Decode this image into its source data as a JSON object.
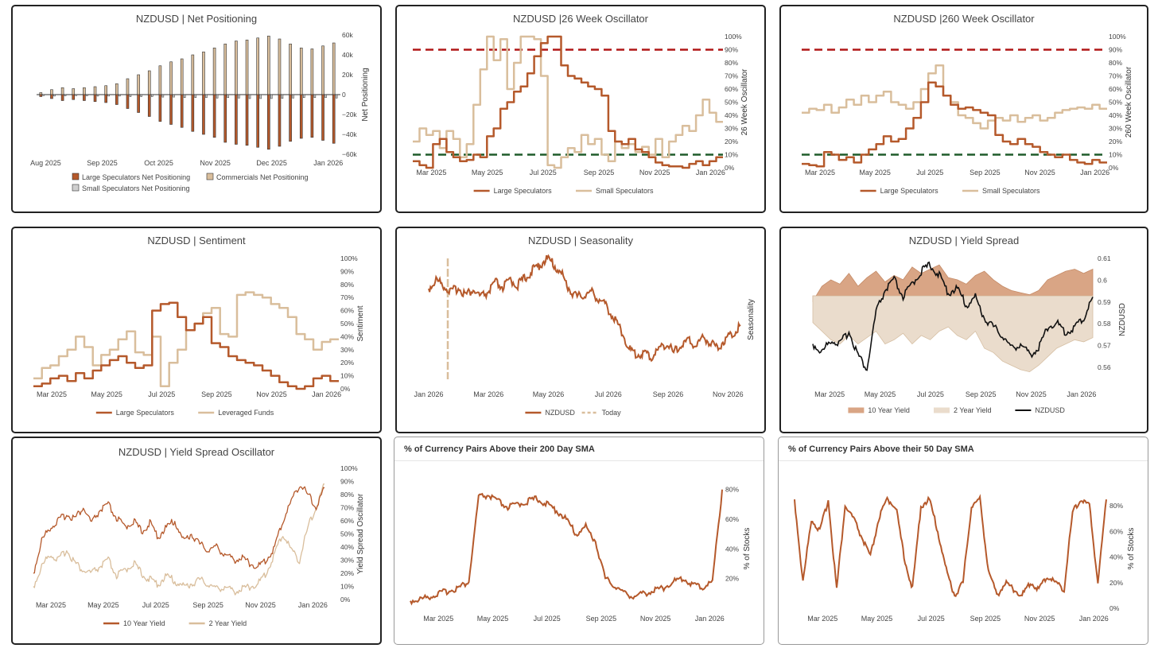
{
  "colors": {
    "large": "#b5592b",
    "small": "#d9be9c",
    "green": "#1f5c2a",
    "red": "#b01717",
    "black": "#111111",
    "bar_small": "#cfcfcf"
  },
  "chart_data": [
    {
      "id": "p1",
      "type": "bar",
      "title": "NZDUSD  |  Net Positioning",
      "ylabel": "Net Positioning",
      "ylim": [
        -60000,
        60000
      ],
      "y_ticks": [
        "60k",
        "40k",
        "20k",
        "0",
        "−20k",
        "−40k",
        "−60k"
      ],
      "x_ticks": [
        "Aug 2025",
        "Sep 2025",
        "Oct 2025",
        "Nov 2025",
        "Dec 2025",
        "Jan 2026"
      ],
      "legend": [
        "Large Speculators Net Positioning",
        "Commercials Net Positioning",
        "Small Speculators Net Positioning"
      ],
      "series": [
        {
          "name": "Large Speculators Net Positioning",
          "values": [
            -2000,
            -4000,
            -6000,
            -5000,
            -6000,
            -7000,
            -8000,
            -10000,
            -14000,
            -18000,
            -22000,
            -27000,
            -30000,
            -33000,
            -37000,
            -40000,
            -43000,
            -48000,
            -50000,
            -51000,
            -53000,
            -55000,
            -52000,
            -47000,
            -44000,
            -43000,
            -46000,
            -49000
          ]
        },
        {
          "name": "Commercials Net Positioning",
          "values": [
            2000,
            5000,
            7000,
            6000,
            7000,
            8000,
            9000,
            11000,
            16000,
            20000,
            24000,
            29000,
            33000,
            36000,
            40000,
            43000,
            47000,
            51000,
            54000,
            55000,
            57000,
            59000,
            56000,
            51000,
            47000,
            46000,
            49000,
            52000
          ]
        },
        {
          "name": "Small Speculators Net Positioning",
          "values": [
            -1000,
            -1500,
            -1200,
            -1000,
            -1200,
            -1500,
            -1500,
            -1500,
            -2000,
            -2000,
            -2000,
            -2500,
            -2500,
            -3000,
            -3000,
            -3000,
            -3500,
            -3000,
            -3500,
            -4000,
            -4000,
            -4000,
            -3800,
            -3500,
            -3000,
            -3000,
            -3000,
            -3500
          ]
        }
      ]
    },
    {
      "id": "p2",
      "type": "line",
      "title": "NZDUSD  |26 Week Oscillator",
      "ylabel": "26 Week Oscillator",
      "ylim": [
        0,
        100
      ],
      "y_ticks": [
        "100%",
        "90%",
        "80%",
        "70%",
        "60%",
        "50%",
        "40%",
        "30%",
        "20%",
        "10%",
        "0%"
      ],
      "x_ticks": [
        "Mar 2025",
        "May 2025",
        "Jul 2025",
        "Sep 2025",
        "Nov 2025",
        "Jan 2026"
      ],
      "hlines": [
        {
          "y": 90,
          "color": "red"
        },
        {
          "y": 10,
          "color": "green"
        }
      ],
      "legend": [
        "Large Speculators",
        "Small Speculators"
      ],
      "series": [
        {
          "name": "Large Speculators",
          "values": [
            5,
            2,
            0,
            18,
            22,
            12,
            8,
            5,
            6,
            10,
            8,
            24,
            30,
            45,
            50,
            58,
            62,
            72,
            85,
            95,
            100,
            100,
            78,
            70,
            68,
            65,
            62,
            60,
            55,
            28,
            20,
            18,
            22,
            14,
            12,
            8,
            4,
            2,
            1,
            1,
            0,
            3,
            5,
            2,
            5,
            8
          ]
        },
        {
          "name": "Small Speculators",
          "values": [
            20,
            30,
            25,
            28,
            15,
            28,
            22,
            8,
            18,
            48,
            75,
            100,
            82,
            98,
            60,
            80,
            100,
            100,
            98,
            70,
            2,
            0,
            8,
            15,
            12,
            25,
            18,
            22,
            10,
            5,
            20,
            15,
            18,
            12,
            16,
            10,
            22,
            8,
            20,
            25,
            32,
            28,
            40,
            52,
            42,
            35
          ]
        }
      ]
    },
    {
      "id": "p3",
      "type": "line",
      "title": "NZDUSD  |260 Week Oscillator",
      "ylabel": "260 Week Oscillator",
      "ylim": [
        0,
        100
      ],
      "y_ticks": [
        "100%",
        "90%",
        "80%",
        "70%",
        "60%",
        "50%",
        "40%",
        "30%",
        "20%",
        "10%",
        "0%"
      ],
      "x_ticks": [
        "Mar 2025",
        "May 2025",
        "Jul 2025",
        "Sep 2025",
        "Nov 2025",
        "Jan 2026"
      ],
      "hlines": [
        {
          "y": 90,
          "color": "red"
        },
        {
          "y": 10,
          "color": "green"
        }
      ],
      "legend": [
        "Large Speculators",
        "Small Speculators"
      ],
      "series": [
        {
          "name": "Large Speculators",
          "values": [
            3,
            2,
            1,
            12,
            10,
            6,
            8,
            4,
            10,
            14,
            18,
            24,
            20,
            22,
            30,
            38,
            50,
            65,
            62,
            55,
            48,
            45,
            46,
            44,
            42,
            40,
            25,
            20,
            18,
            22,
            18,
            16,
            12,
            10,
            8,
            10,
            6,
            4,
            3,
            6,
            4
          ]
        },
        {
          "name": "Small Speculators",
          "values": [
            42,
            45,
            44,
            48,
            42,
            46,
            52,
            48,
            55,
            50,
            55,
            58,
            50,
            48,
            45,
            50,
            60,
            72,
            78,
            55,
            50,
            40,
            38,
            34,
            30,
            36,
            38,
            36,
            40,
            35,
            38,
            40,
            36,
            38,
            42,
            44,
            45,
            46,
            45,
            48,
            45
          ]
        }
      ]
    },
    {
      "id": "p4",
      "type": "line",
      "title": "NZDUSD  |  Sentiment",
      "ylabel": "Sentiment",
      "ylim": [
        0,
        100
      ],
      "y_ticks": [
        "100%",
        "90%",
        "80%",
        "70%",
        "60%",
        "50%",
        "40%",
        "30%",
        "20%",
        "10%",
        "0%"
      ],
      "x_ticks": [
        "Mar 2025",
        "May 2025",
        "Jul 2025",
        "Sep 2025",
        "Nov 2025",
        "Jan 2026"
      ],
      "legend": [
        "Large Speculators",
        "Leveraged Funds"
      ],
      "series": [
        {
          "name": "Large Speculators",
          "values": [
            2,
            4,
            8,
            10,
            6,
            12,
            8,
            14,
            18,
            22,
            25,
            20,
            16,
            18,
            60,
            65,
            66,
            55,
            45,
            50,
            55,
            35,
            32,
            25,
            22,
            20,
            18,
            14,
            10,
            5,
            2,
            0,
            2,
            8,
            10,
            6
          ]
        },
        {
          "name": "Leveraged Funds",
          "values": [
            8,
            16,
            18,
            25,
            30,
            40,
            32,
            18,
            26,
            30,
            38,
            44,
            28,
            26,
            40,
            2,
            20,
            30,
            45,
            50,
            58,
            62,
            42,
            40,
            72,
            74,
            72,
            70,
            65,
            62,
            55,
            42,
            38,
            30,
            36,
            38
          ]
        }
      ]
    },
    {
      "id": "p5",
      "type": "line",
      "title": "NZDUSD  |  Seasonality",
      "ylabel": "Seasonality",
      "ylim": [
        0,
        100
      ],
      "x_ticks": [
        "Jan 2026",
        "Mar 2026",
        "May 2026",
        "Jul 2026",
        "Sep 2026",
        "Nov 2026"
      ],
      "x_tick_labels": [
        "Jan 2026",
        "Mar 2026",
        "May 2026",
        "Jul 2026",
        "Sep 2026",
        "Nov 2026"
      ],
      "legend": [
        "NZDUSD",
        "Today"
      ],
      "series": [
        {
          "name": "NZDUSD",
          "values": [
            75,
            82,
            78,
            72,
            76,
            70,
            74,
            68,
            72,
            80,
            76,
            82,
            78,
            84,
            90,
            95,
            100,
            94,
            86,
            74,
            68,
            70,
            72,
            66,
            60,
            50,
            40,
            25,
            20,
            22,
            18,
            25,
            30,
            22,
            28,
            32,
            28,
            35,
            30,
            26,
            34,
            38,
            45
          ]
        }
      ]
    },
    {
      "id": "p6",
      "type": "area",
      "title": "NZDUSD  |  Yield Spread",
      "ylabel": "NZDUSD",
      "ylim": [
        0.555,
        0.61
      ],
      "y_ticks": [
        "0.61",
        "0.6",
        "0.59",
        "0.58",
        "0.57",
        "0.56"
      ],
      "x_ticks": [
        "Mar 2025",
        "May 2025",
        "Jul 2025",
        "Sep 2025",
        "Nov 2025",
        "Jan 2026"
      ],
      "legend": [
        "10 Year Yield",
        "2 Year Yield",
        "NZDUSD"
      ],
      "series": [
        {
          "name": "10 Year Yield",
          "values": [
            0.59,
            0.597,
            0.6,
            0.598,
            0.603,
            0.597,
            0.601,
            0.604,
            0.599,
            0.602,
            0.6,
            0.606,
            0.603,
            0.605,
            0.607,
            0.601,
            0.6,
            0.598,
            0.602,
            0.604,
            0.6,
            0.597,
            0.595,
            0.594,
            0.593,
            0.595,
            0.6,
            0.602,
            0.604,
            0.605,
            0.603,
            0.605
          ]
        },
        {
          "name": "2 Year Yield",
          "values": [
            0.58,
            0.576,
            0.572,
            0.57,
            0.574,
            0.57,
            0.573,
            0.576,
            0.57,
            0.572,
            0.575,
            0.57,
            0.574,
            0.572,
            0.576,
            0.578,
            0.574,
            0.572,
            0.576,
            0.568,
            0.566,
            0.562,
            0.56,
            0.558,
            0.557,
            0.56,
            0.564,
            0.568,
            0.57,
            0.572,
            0.571,
            0.573
          ]
        },
        {
          "name": "NZDUSD",
          "values": [
            0.57,
            0.566,
            0.572,
            0.57,
            0.576,
            0.565,
            0.558,
            0.585,
            0.595,
            0.6,
            0.592,
            0.598,
            0.604,
            0.607,
            0.602,
            0.594,
            0.596,
            0.588,
            0.592,
            0.582,
            0.578,
            0.574,
            0.568,
            0.57,
            0.565,
            0.568,
            0.578,
            0.58,
            0.575,
            0.578,
            0.582,
            0.592
          ]
        }
      ]
    },
    {
      "id": "p7",
      "type": "line",
      "title": "NZDUSD  |  Yield Spread Oscillator",
      "ylabel": "Yield Spread Oscillator",
      "ylim": [
        0,
        100
      ],
      "y_ticks": [
        "100%",
        "90%",
        "80%",
        "70%",
        "60%",
        "50%",
        "40%",
        "30%",
        "20%",
        "10%",
        "0%"
      ],
      "x_ticks": [
        "Mar 2025",
        "May 2025",
        "Jul 2025",
        "Sep 2025",
        "Nov 2025",
        "Jan 2026"
      ],
      "legend": [
        "10 Year Yield",
        "2 Year Yield"
      ],
      "series": [
        {
          "name": "10 Year Yield",
          "values": [
            20,
            45,
            55,
            60,
            65,
            62,
            70,
            58,
            68,
            72,
            62,
            55,
            60,
            52,
            58,
            48,
            55,
            60,
            45,
            50,
            42,
            38,
            40,
            35,
            30,
            32,
            28,
            25,
            30,
            40,
            60,
            75,
            88,
            80,
            70,
            85
          ]
        },
        {
          "name": "2 Year Yield",
          "values": [
            10,
            25,
            35,
            30,
            38,
            28,
            22,
            20,
            25,
            30,
            18,
            22,
            28,
            20,
            15,
            12,
            18,
            14,
            10,
            12,
            15,
            12,
            8,
            10,
            6,
            8,
            10,
            12,
            20,
            35,
            50,
            38,
            30,
            55,
            70,
            88
          ]
        }
      ]
    },
    {
      "id": "p8",
      "type": "line",
      "title": "% of Currency Pairs Above their 200 Day SMA",
      "ylabel": "% of Stocks",
      "ylim": [
        0,
        82
      ],
      "y_ticks": [
        "80%",
        "60%",
        "40%",
        "20%"
      ],
      "x_ticks": [
        "Mar 2025",
        "May 2025",
        "Jul 2025",
        "Sep 2025",
        "Nov 2025",
        "Jan 2026"
      ],
      "series": [
        {
          "name": "% of Stocks",
          "values": [
            5,
            6,
            8,
            10,
            12,
            14,
            18,
            75,
            76,
            72,
            68,
            70,
            72,
            74,
            70,
            66,
            60,
            50,
            55,
            45,
            20,
            15,
            10,
            8,
            10,
            12,
            14,
            18,
            20,
            16,
            14,
            18,
            80
          ]
        }
      ]
    },
    {
      "id": "p9",
      "type": "line",
      "title": "% of Currency Pairs Above their 50 Day SMA",
      "ylabel": "% of Stocks",
      "ylim": [
        0,
        95
      ],
      "y_ticks": [
        "80%",
        "60%",
        "40%",
        "20%",
        "0%"
      ],
      "x_ticks": [
        "Mar 2025",
        "May 2025",
        "Jul 2025",
        "Sep 2025",
        "Nov 2025",
        "Jan 2026"
      ],
      "series": [
        {
          "name": "% of Stocks",
          "values": [
            85,
            20,
            70,
            60,
            85,
            15,
            80,
            70,
            55,
            40,
            70,
            85,
            80,
            40,
            15,
            80,
            85,
            60,
            30,
            10,
            20,
            80,
            85,
            30,
            10,
            20,
            15,
            10,
            20,
            15,
            25,
            20,
            15,
            75,
            85,
            80,
            20,
            85
          ]
        }
      ]
    }
  ]
}
